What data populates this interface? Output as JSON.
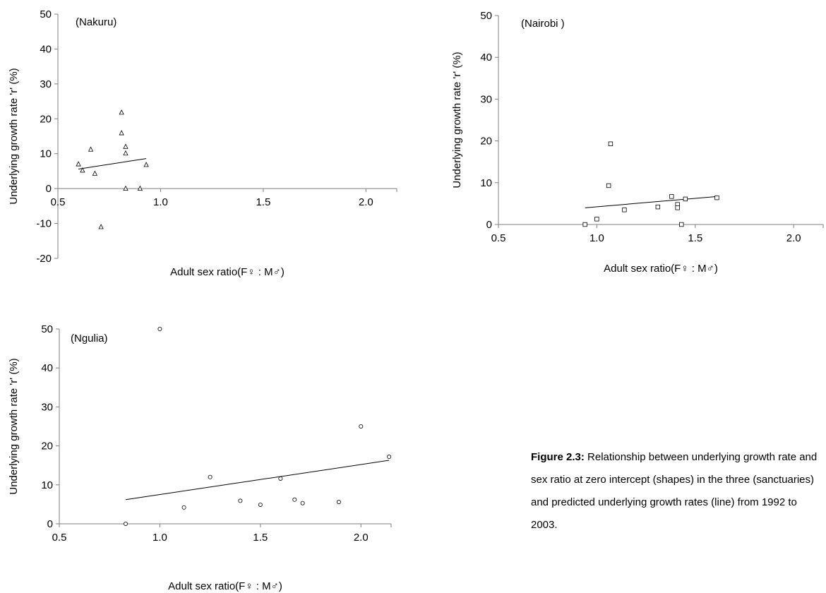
{
  "chart_data": [
    {
      "type": "scatter",
      "panel_label": "(Nakuru)",
      "xlabel": "Adult sex ratio(F♀ : M♂)",
      "ylabel": "Underlying growth rate 'r' (%)",
      "xlim": [
        0.5,
        2.15
      ],
      "ylim": [
        -20,
        50
      ],
      "xticks": [
        "0.5",
        "1.0",
        "1.5",
        "2.0"
      ],
      "yticks": [
        "-20",
        "-10",
        "0",
        "10",
        "20",
        "30",
        "40",
        "50"
      ],
      "marker": "triangle",
      "points": [
        {
          "x": 0.6,
          "y": 7.0
        },
        {
          "x": 0.62,
          "y": 5.2
        },
        {
          "x": 0.66,
          "y": 11.2
        },
        {
          "x": 0.68,
          "y": 4.3
        },
        {
          "x": 0.71,
          "y": -11.0
        },
        {
          "x": 0.81,
          "y": 21.8
        },
        {
          "x": 0.81,
          "y": 15.9
        },
        {
          "x": 0.83,
          "y": 12.0
        },
        {
          "x": 0.83,
          "y": 10.1
        },
        {
          "x": 0.83,
          "y": 0.0
        },
        {
          "x": 0.9,
          "y": 0.0
        },
        {
          "x": 0.93,
          "y": 6.8
        }
      ],
      "trendline": [
        {
          "x": 0.6,
          "y": 5.6
        },
        {
          "x": 0.93,
          "y": 8.6
        }
      ]
    },
    {
      "type": "scatter",
      "panel_label": "(Nairobi )",
      "xlabel": "Adult sex ratio(F♀ : M♂)",
      "ylabel": "Underlying growth rate 'r' (%)",
      "xlim": [
        0.5,
        2.15
      ],
      "ylim": [
        0,
        50
      ],
      "xticks": [
        "0.5",
        "1.0",
        "1.5",
        "2.0"
      ],
      "yticks": [
        "0",
        "10",
        "20",
        "30",
        "40",
        "50"
      ],
      "marker": "square",
      "points": [
        {
          "x": 0.94,
          "y": 0.0
        },
        {
          "x": 1.0,
          "y": 1.3
        },
        {
          "x": 1.06,
          "y": 9.3
        },
        {
          "x": 1.07,
          "y": 19.3
        },
        {
          "x": 1.14,
          "y": 3.5
        },
        {
          "x": 1.31,
          "y": 4.2
        },
        {
          "x": 1.38,
          "y": 6.7
        },
        {
          "x": 1.41,
          "y": 4.8
        },
        {
          "x": 1.41,
          "y": 4.0
        },
        {
          "x": 1.43,
          "y": 0.0
        },
        {
          "x": 1.45,
          "y": 6.1
        },
        {
          "x": 1.61,
          "y": 6.4
        }
      ],
      "trendline": [
        {
          "x": 0.94,
          "y": 4.0
        },
        {
          "x": 1.61,
          "y": 6.7
        }
      ]
    },
    {
      "type": "scatter",
      "panel_label": "(Ngulia)",
      "xlabel": "Adult sex ratio(F♀ : M♂)",
      "ylabel": "Underlying growth rate 'r' (%)",
      "xlim": [
        0.5,
        2.15
      ],
      "ylim": [
        0,
        50
      ],
      "xticks": [
        "0.5",
        "1.0",
        "1.5",
        "2.0"
      ],
      "yticks": [
        "0",
        "10",
        "20",
        "30",
        "40",
        "50"
      ],
      "marker": "circle",
      "points": [
        {
          "x": 0.83,
          "y": 0.0
        },
        {
          "x": 1.0,
          "y": 50.0
        },
        {
          "x": 1.12,
          "y": 4.2
        },
        {
          "x": 1.25,
          "y": 12.0
        },
        {
          "x": 1.4,
          "y": 5.9
        },
        {
          "x": 1.5,
          "y": 4.9
        },
        {
          "x": 1.6,
          "y": 11.6
        },
        {
          "x": 1.67,
          "y": 6.2
        },
        {
          "x": 1.71,
          "y": 5.3
        },
        {
          "x": 1.89,
          "y": 5.6
        },
        {
          "x": 2.0,
          "y": 25.0
        },
        {
          "x": 2.14,
          "y": 17.2
        }
      ],
      "trendline": [
        {
          "x": 0.83,
          "y": 6.2
        },
        {
          "x": 2.14,
          "y": 16.3
        }
      ]
    }
  ],
  "caption": {
    "title": "Figure 2.3:",
    "line1": " Relationship between underlying growth rate and",
    "line2": "sex ratio at zero intercept (shapes) in the three (sanctuaries)",
    "line3": "and predicted underlying growth rates (line) from 1992 to",
    "line4": "2003."
  }
}
